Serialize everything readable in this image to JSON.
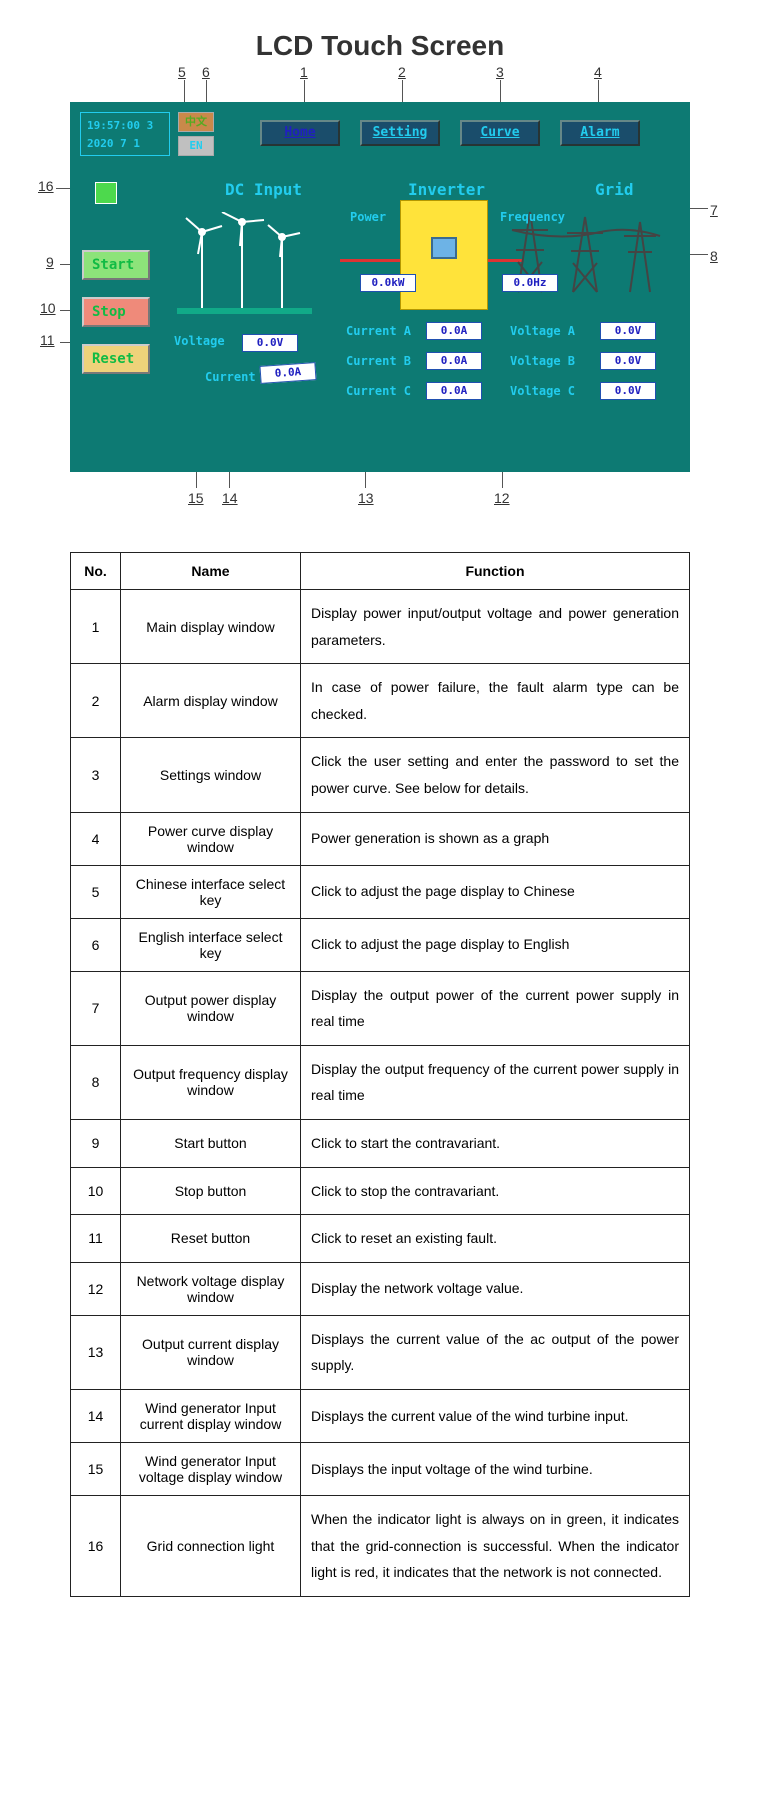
{
  "title": "LCD Touch Screen",
  "clock": {
    "time": "19:57:00  3",
    "date": "2020  7  1"
  },
  "lang": {
    "cn": "中文",
    "en": "EN"
  },
  "nav": {
    "home": "Home",
    "setting": "Setting",
    "curve": "Curve",
    "alarm": "Alarm"
  },
  "sections": {
    "dc": "DC Input",
    "inv": "Inverter",
    "grid": "Grid"
  },
  "indicator_color": "#4dd94d",
  "ctrl": {
    "start": "Start",
    "stop": "Stop",
    "reset": "Reset"
  },
  "labels": {
    "power": "Power",
    "frequency": "Frequency",
    "voltage": "Voltage",
    "current": "Current",
    "cur_a": "Current A",
    "cur_b": "Current B",
    "cur_c": "Current C",
    "vol_a": "Voltage A",
    "vol_b": "Voltage B",
    "vol_c": "Voltage C"
  },
  "values": {
    "power": "0.0kW",
    "frequency": "0.0Hz",
    "dc_voltage": "0.0V",
    "dc_current": "0.0A",
    "cur_a": "0.0A",
    "cur_b": "0.0A",
    "cur_c": "0.0A",
    "vol_a": "0.0V",
    "vol_b": "0.0V",
    "vol_c": "0.0V"
  },
  "callouts": [
    "1",
    "2",
    "3",
    "4",
    "5",
    "6",
    "7",
    "8",
    "9",
    "10",
    "11",
    "12",
    "13",
    "14",
    "15",
    "16"
  ],
  "table": {
    "headers": {
      "no": "No.",
      "name": "Name",
      "fn": "Function"
    },
    "rows": [
      {
        "no": "1",
        "name": "Main display window",
        "fn": "Display power input/output voltage and power generation parameters."
      },
      {
        "no": "2",
        "name": "Alarm display window",
        "fn": "In case of power failure, the fault alarm type can be checked."
      },
      {
        "no": "3",
        "name": "Settings window",
        "fn": "Click the user setting and enter the password to set the power curve. See below for details."
      },
      {
        "no": "4",
        "name": "Power curve display window",
        "fn": "Power generation is shown as a graph"
      },
      {
        "no": "5",
        "name": "Chinese interface select key",
        "fn": "Click to adjust the page display to Chinese"
      },
      {
        "no": "6",
        "name": "English interface select key",
        "fn": "Click to adjust the page display to English"
      },
      {
        "no": "7",
        "name": "Output power display window",
        "fn": "Display the output power of the current power supply in real time"
      },
      {
        "no": "8",
        "name": "Output frequency display window",
        "fn": "Display the output frequency of the current power supply in real time"
      },
      {
        "no": "9",
        "name": "Start button",
        "fn": "Click to start the contravariant."
      },
      {
        "no": "10",
        "name": "Stop button",
        "fn": "Click to stop the contravariant."
      },
      {
        "no": "11",
        "name": "Reset button",
        "fn": "Click to reset an existing fault."
      },
      {
        "no": "12",
        "name": "Network voltage display window",
        "fn": "Display the network voltage value."
      },
      {
        "no": "13",
        "name": "Output current display window",
        "fn": "Displays the current value of the ac output of the power supply."
      },
      {
        "no": "14",
        "name": "Wind generator Input current display window",
        "fn": "Displays the current value of the wind turbine input."
      },
      {
        "no": "15",
        "name": "Wind generator Input voltage display window",
        "fn": "Displays the input voltage of the wind turbine."
      },
      {
        "no": "16",
        "name": "Grid connection light",
        "fn": "When the indicator light is always on in green, it indicates that the grid-connection is successful. When the indicator light is red, it indicates that the network is not connected."
      }
    ]
  },
  "colors": {
    "screen_bg": "#0d7a73",
    "label_cyan": "#22ccee",
    "value_blue": "#2020c0",
    "start_bg": "#8de37a",
    "stop_bg": "#ef8a7a",
    "reset_bg": "#eed27a",
    "nav_bg": "#1a4d6b",
    "inverter_bg": "#ffe33a"
  }
}
